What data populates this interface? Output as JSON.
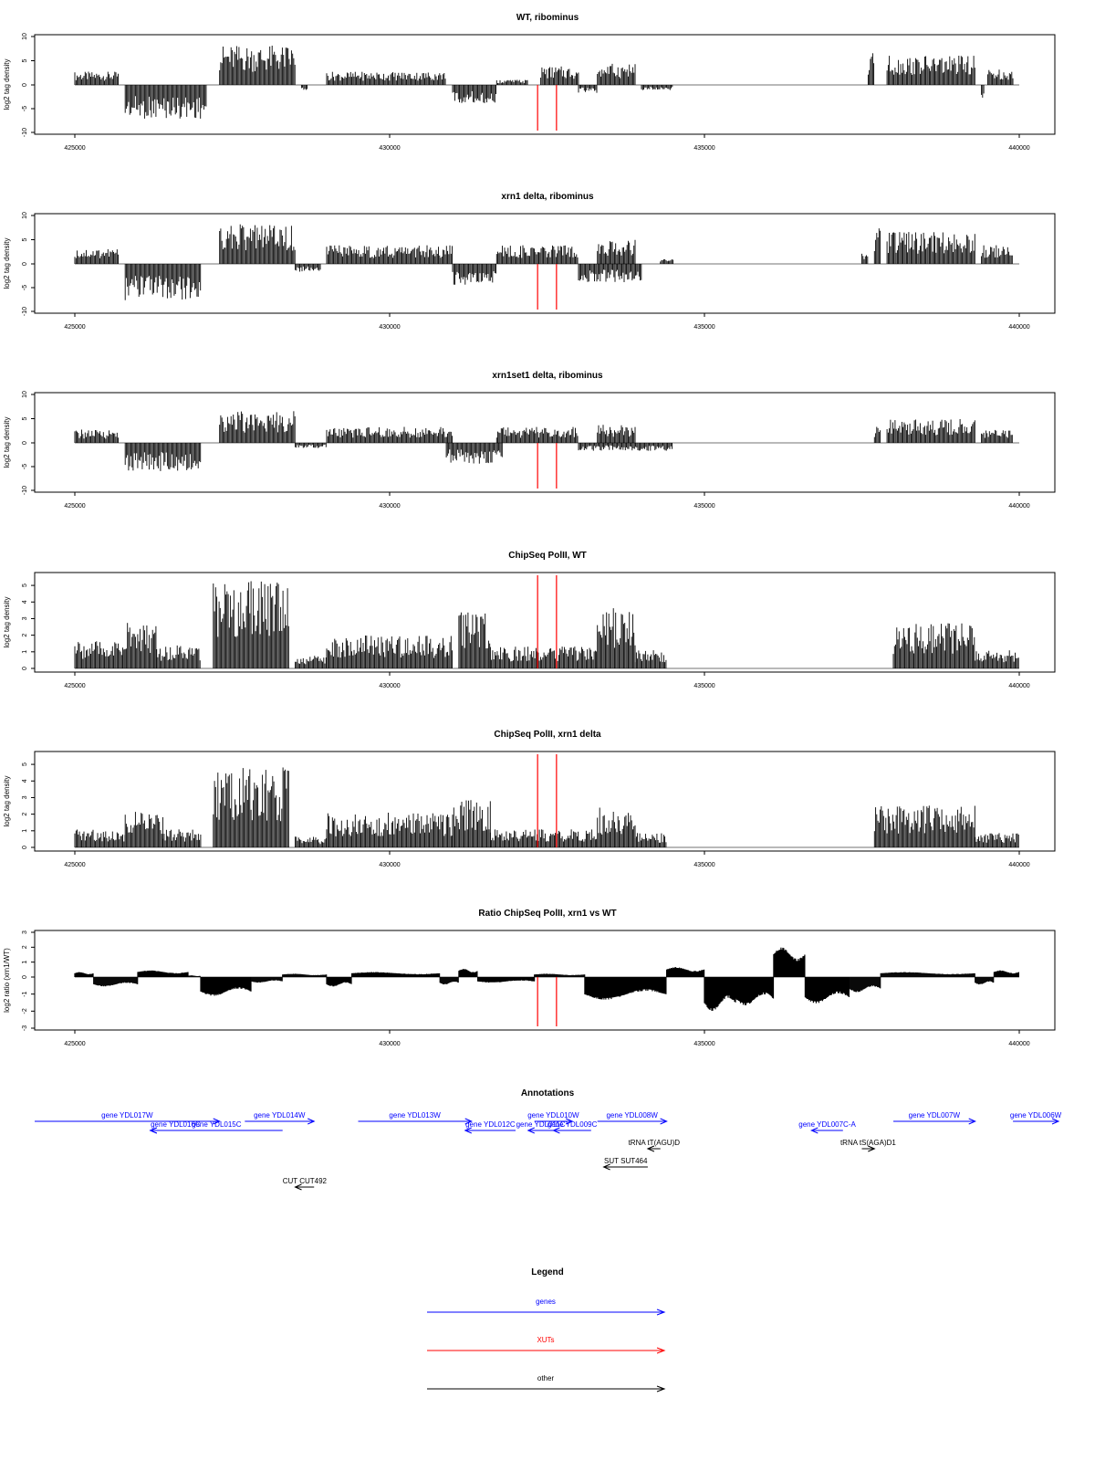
{
  "chart_data": [
    {
      "type": "bar",
      "title": "WT, ribominus",
      "ylabel": "log2 tag density",
      "xlim": [
        425000,
        440000
      ],
      "ylim": [
        -10,
        10
      ],
      "yticks": [
        10,
        5,
        0,
        -5,
        -10
      ],
      "xticks": [
        425000,
        430000,
        435000,
        440000
      ],
      "markers": [
        432350,
        432650
      ],
      "segments": [
        {
          "x0": 425000,
          "x1": 425700,
          "v": 2.5
        },
        {
          "x0": 425800,
          "x1": 427100,
          "v": -6.5
        },
        {
          "x0": 427300,
          "x1": 428500,
          "v": 7.5
        },
        {
          "x0": 428600,
          "x1": 428700,
          "v": -1.0
        },
        {
          "x0": 429000,
          "x1": 430900,
          "v": 2.5
        },
        {
          "x0": 431000,
          "x1": 431700,
          "v": -3.5
        },
        {
          "x0": 431700,
          "x1": 432200,
          "v": 1.0
        },
        {
          "x0": 432400,
          "x1": 433000,
          "v": 3.5
        },
        {
          "x0": 433000,
          "x1": 433300,
          "v": -1.5
        },
        {
          "x0": 433300,
          "x1": 433900,
          "v": 4.0
        },
        {
          "x0": 434000,
          "x1": 434500,
          "v": -1.0
        },
        {
          "x0": 437600,
          "x1": 437700,
          "v": 6.0
        },
        {
          "x0": 437900,
          "x1": 439300,
          "v": 5.5
        },
        {
          "x0": 439400,
          "x1": 439450,
          "v": -2.5
        },
        {
          "x0": 439500,
          "x1": 439900,
          "v": 3.0
        }
      ]
    },
    {
      "type": "bar",
      "title": "xrn1 delta, ribominus",
      "ylabel": "log2 tag density",
      "xlim": [
        425000,
        440000
      ],
      "ylim": [
        -10,
        10
      ],
      "yticks": [
        10,
        5,
        0,
        -5,
        -10
      ],
      "xticks": [
        425000,
        430000,
        435000,
        440000
      ],
      "markers": [
        432350,
        432650
      ],
      "segments": [
        {
          "x0": 425000,
          "x1": 425700,
          "v": 3.0
        },
        {
          "x0": 425800,
          "x1": 427000,
          "v": -7.0
        },
        {
          "x0": 427300,
          "x1": 428500,
          "v": 7.5
        },
        {
          "x0": 428500,
          "x1": 428900,
          "v": -1.5
        },
        {
          "x0": 429000,
          "x1": 431000,
          "v": 3.5
        },
        {
          "x0": 431000,
          "x1": 431700,
          "v": -4.0
        },
        {
          "x0": 431700,
          "x1": 433000,
          "v": 3.5
        },
        {
          "x0": 433000,
          "x1": 434000,
          "v": -3.5
        },
        {
          "x0": 433300,
          "x1": 433900,
          "v": 4.5
        },
        {
          "x0": 434300,
          "x1": 434500,
          "v": 1.0
        },
        {
          "x0": 437500,
          "x1": 437600,
          "v": 2.0
        },
        {
          "x0": 437700,
          "x1": 437800,
          "v": 7.0
        },
        {
          "x0": 437900,
          "x1": 439300,
          "v": 6.0
        },
        {
          "x0": 439400,
          "x1": 439900,
          "v": 3.5
        }
      ]
    },
    {
      "type": "bar",
      "title": "xrn1set1 delta, ribominus",
      "ylabel": "log2 tag density",
      "xlim": [
        425000,
        440000
      ],
      "ylim": [
        -10,
        10
      ],
      "yticks": [
        10,
        5,
        0,
        -5,
        -10
      ],
      "xticks": [
        425000,
        430000,
        435000,
        440000
      ],
      "markers": [
        432350,
        432650
      ],
      "segments": [
        {
          "x0": 425000,
          "x1": 425700,
          "v": 2.5
        },
        {
          "x0": 425800,
          "x1": 427000,
          "v": -5.5
        },
        {
          "x0": 427300,
          "x1": 428500,
          "v": 6.0
        },
        {
          "x0": 428500,
          "x1": 429000,
          "v": -1.0
        },
        {
          "x0": 429000,
          "x1": 431000,
          "v": 3.0
        },
        {
          "x0": 430900,
          "x1": 431800,
          "v": -4.0
        },
        {
          "x0": 431700,
          "x1": 433000,
          "v": 3.0
        },
        {
          "x0": 433000,
          "x1": 434500,
          "v": -1.5
        },
        {
          "x0": 433300,
          "x1": 433900,
          "v": 3.5
        },
        {
          "x0": 437700,
          "x1": 437800,
          "v": 3.0
        },
        {
          "x0": 437900,
          "x1": 439300,
          "v": 4.5
        },
        {
          "x0": 439400,
          "x1": 439900,
          "v": 2.5
        }
      ]
    },
    {
      "type": "bar",
      "title": "ChipSeq PolII, WT",
      "ylabel": "log2 tag density",
      "xlim": [
        425000,
        440000
      ],
      "ylim": [
        0,
        5.5
      ],
      "yticks": [
        5,
        4,
        3,
        2,
        1,
        0
      ],
      "xticks": [
        425000,
        430000,
        435000,
        440000
      ],
      "markers": [
        432350,
        432650
      ],
      "segments": [
        {
          "x0": 425000,
          "x1": 425800,
          "v": 1.5
        },
        {
          "x0": 425800,
          "x1": 426300,
          "v": 2.5
        },
        {
          "x0": 426300,
          "x1": 427000,
          "v": 1.3
        },
        {
          "x0": 427200,
          "x1": 428400,
          "v": 4.8
        },
        {
          "x0": 428500,
          "x1": 429000,
          "v": 0.7
        },
        {
          "x0": 429000,
          "x1": 431000,
          "v": 1.8
        },
        {
          "x0": 431100,
          "x1": 431600,
          "v": 3.3
        },
        {
          "x0": 431600,
          "x1": 433300,
          "v": 1.2
        },
        {
          "x0": 433300,
          "x1": 433900,
          "v": 3.3
        },
        {
          "x0": 433900,
          "x1": 434400,
          "v": 1.0
        },
        {
          "x0": 438000,
          "x1": 439300,
          "v": 2.5
        },
        {
          "x0": 439300,
          "x1": 440000,
          "v": 1.0
        }
      ]
    },
    {
      "type": "bar",
      "title": "ChipSeq PolII, xrn1 delta",
      "ylabel": "log2 tag density",
      "xlim": [
        425000,
        440000
      ],
      "ylim": [
        0,
        5.5
      ],
      "yticks": [
        5,
        4,
        3,
        2,
        1,
        0
      ],
      "xticks": [
        425000,
        430000,
        435000,
        440000
      ],
      "markers": [
        432350,
        432650
      ],
      "segments": [
        {
          "x0": 425000,
          "x1": 425800,
          "v": 1.0
        },
        {
          "x0": 425800,
          "x1": 426400,
          "v": 2.0
        },
        {
          "x0": 426400,
          "x1": 427000,
          "v": 1.0
        },
        {
          "x0": 427200,
          "x1": 428400,
          "v": 4.5
        },
        {
          "x0": 428500,
          "x1": 429000,
          "v": 0.6
        },
        {
          "x0": 429000,
          "x1": 431000,
          "v": 1.9
        },
        {
          "x0": 431000,
          "x1": 431600,
          "v": 2.6
        },
        {
          "x0": 431600,
          "x1": 433300,
          "v": 1.0
        },
        {
          "x0": 433300,
          "x1": 433900,
          "v": 2.2
        },
        {
          "x0": 433900,
          "x1": 434400,
          "v": 0.8
        },
        {
          "x0": 437700,
          "x1": 439300,
          "v": 2.3
        },
        {
          "x0": 439300,
          "x1": 440000,
          "v": 0.8
        }
      ]
    },
    {
      "type": "area",
      "title": "Ratio ChipSeq PolII, xrn1 vs WT",
      "ylabel": "log2 ratio (xrn1/WT)",
      "xlim": [
        425000,
        440000
      ],
      "ylim": [
        -3,
        3
      ],
      "yticks": [
        3,
        2,
        1,
        0,
        -1,
        -2,
        -3
      ],
      "xticks": [
        425000,
        430000,
        435000,
        440000
      ],
      "markers": [
        432350,
        432650
      ],
      "segments": [
        {
          "x0": 425000,
          "x1": 425300,
          "v": 0.3
        },
        {
          "x0": 425300,
          "x1": 426000,
          "v": -0.5
        },
        {
          "x0": 426000,
          "x1": 426800,
          "v": 0.4
        },
        {
          "x0": 426800,
          "x1": 427000,
          "v": 0.1
        },
        {
          "x0": 427000,
          "x1": 427800,
          "v": -1.0
        },
        {
          "x0": 427800,
          "x1": 428300,
          "v": -0.3
        },
        {
          "x0": 428300,
          "x1": 429000,
          "v": 0.2
        },
        {
          "x0": 429000,
          "x1": 429400,
          "v": -0.5
        },
        {
          "x0": 429400,
          "x1": 430800,
          "v": 0.3
        },
        {
          "x0": 430800,
          "x1": 431100,
          "v": -0.4
        },
        {
          "x0": 431100,
          "x1": 431400,
          "v": 0.5
        },
        {
          "x0": 431400,
          "x1": 432300,
          "v": -0.3
        },
        {
          "x0": 432300,
          "x1": 433100,
          "v": 0.2
        },
        {
          "x0": 433100,
          "x1": 434400,
          "v": -1.2
        },
        {
          "x0": 434400,
          "x1": 435000,
          "v": 0.6
        },
        {
          "x0": 435000,
          "x1": 435500,
          "v": -1.8
        },
        {
          "x0": 435500,
          "x1": 436100,
          "v": -1.5
        },
        {
          "x0": 436100,
          "x1": 436600,
          "v": 1.8
        },
        {
          "x0": 436600,
          "x1": 437300,
          "v": -1.4
        },
        {
          "x0": 437300,
          "x1": 437800,
          "v": -0.8
        },
        {
          "x0": 437800,
          "x1": 439300,
          "v": 0.3
        },
        {
          "x0": 439300,
          "x1": 439600,
          "v": -0.4
        },
        {
          "x0": 439600,
          "x1": 440000,
          "v": 0.4
        }
      ]
    }
  ],
  "annotations": {
    "title": "Annotations",
    "items": [
      {
        "label": "gene YDL017W",
        "x0": 424200,
        "x1": 427300,
        "row": 0,
        "dir": "right",
        "kind": "gene"
      },
      {
        "label": "gene YDL016C",
        "x0": 426200,
        "x1": 427000,
        "row": 1,
        "dir": "left",
        "kind": "gene"
      },
      {
        "label": "gene YDL015C",
        "x0": 426200,
        "x1": 428300,
        "row": 1,
        "dir": "left",
        "kind": "gene"
      },
      {
        "label": "gene YDL014W",
        "x0": 427700,
        "x1": 428800,
        "row": 0,
        "dir": "right",
        "kind": "gene"
      },
      {
        "label": "gene YDL013W",
        "x0": 429500,
        "x1": 431300,
        "row": 0,
        "dir": "right",
        "kind": "gene"
      },
      {
        "label": "gene YDL012C",
        "x0": 431200,
        "x1": 432000,
        "row": 1,
        "dir": "left",
        "kind": "gene"
      },
      {
        "label": "gene YDL010W",
        "x0": 432300,
        "x1": 432900,
        "row": 0,
        "dir": "right",
        "kind": "gene"
      },
      {
        "label": "gene YDL011C",
        "x0": 432200,
        "x1": 432600,
        "row": 1,
        "dir": "left",
        "kind": "gene"
      },
      {
        "label": "gene YDL009C",
        "x0": 432600,
        "x1": 433200,
        "row": 1,
        "dir": "left",
        "kind": "gene"
      },
      {
        "label": "gene YDL008W",
        "x0": 433300,
        "x1": 434400,
        "row": 0,
        "dir": "right",
        "kind": "gene"
      },
      {
        "label": "tRNA tT(AGU)D",
        "x0": 434100,
        "x1": 434300,
        "row": 2,
        "dir": "left",
        "kind": "other"
      },
      {
        "label": "SUT SUT464",
        "x0": 433400,
        "x1": 434100,
        "row": 3,
        "dir": "left",
        "kind": "other"
      },
      {
        "label": "CUT CUT492",
        "x0": 428500,
        "x1": 428800,
        "row": 4,
        "dir": "left",
        "kind": "other"
      },
      {
        "label": "gene YDL007C-A",
        "x0": 436700,
        "x1": 437200,
        "row": 1,
        "dir": "left",
        "kind": "gene"
      },
      {
        "label": "tRNA tS(AGA)D1",
        "x0": 437500,
        "x1": 437700,
        "row": 2,
        "dir": "right",
        "kind": "other"
      },
      {
        "label": "gene YDL007W",
        "x0": 438000,
        "x1": 439300,
        "row": 0,
        "dir": "right",
        "kind": "gene"
      },
      {
        "label": "gene YDL006W",
        "x0": 439900,
        "x1": 440800,
        "row": 0,
        "dir": "right",
        "kind": "gene"
      }
    ]
  },
  "legend": {
    "title": "Legend",
    "entries": [
      {
        "label": "genes",
        "color": "#0000ff"
      },
      {
        "label": "XUTs",
        "color": "#ff0000"
      },
      {
        "label": "other",
        "color": "#000000"
      }
    ]
  },
  "colors": {
    "marker": "#ff0000",
    "bars": "#000000",
    "gene": "#0000ff",
    "other": "#000000"
  }
}
